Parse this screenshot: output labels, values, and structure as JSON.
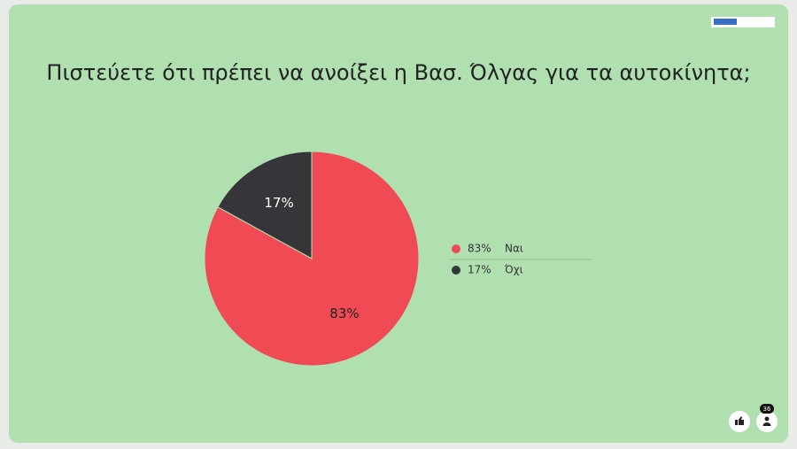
{
  "chart_data": {
    "type": "pie",
    "title": "Πιστεύετε ότι πρέπει να ανοίξει η Βασ. Όλγας για τα αυτοκίνητα;",
    "categories": [
      "Ναι",
      "Όχι"
    ],
    "values": [
      83,
      17
    ],
    "value_labels": [
      "83%",
      "17%"
    ],
    "colors": [
      "#f04b55",
      "#36363a"
    ],
    "label_colors": [
      "#222222",
      "#ffffff"
    ],
    "legend": "right"
  },
  "participants": "36"
}
